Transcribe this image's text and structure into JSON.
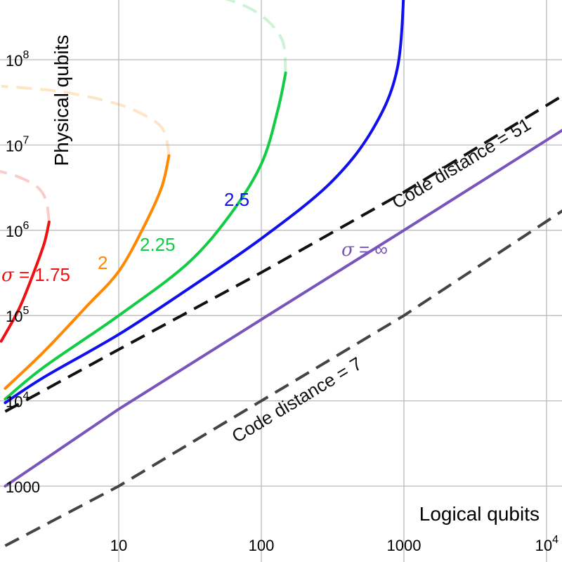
{
  "chart_data": {
    "type": "line",
    "x_scale": "log",
    "y_scale": "log",
    "xlim": [
      1.6,
      13000
    ],
    "ylim": [
      320,
      1000000000
    ],
    "grid": true,
    "xlabel": "Logical qubits",
    "ylabel": "Physical qubits",
    "x_ticks": [
      {
        "value": 10,
        "label": "10"
      },
      {
        "value": 100,
        "label": "100"
      },
      {
        "value": 1000,
        "label": "1000"
      },
      {
        "value": 10000,
        "base": "10",
        "exp": "4"
      }
    ],
    "y_ticks": [
      {
        "value": 1000,
        "label": "1000"
      },
      {
        "value": 10000,
        "base": "10",
        "exp": "4"
      },
      {
        "value": 100000,
        "base": "10",
        "exp": "5"
      },
      {
        "value": 1000000,
        "base": "10",
        "exp": "6"
      },
      {
        "value": 10000000,
        "base": "10",
        "exp": "7"
      },
      {
        "value": 100000000,
        "base": "10",
        "exp": "8"
      }
    ],
    "series": [
      {
        "name": "σ = 1.75",
        "color": "#ee1111",
        "solid": [
          [
            1.5,
            50000
          ],
          [
            2.0,
            120000
          ],
          [
            2.5,
            300000
          ],
          [
            3.0,
            700000
          ],
          [
            3.25,
            1250000
          ]
        ],
        "dashed": [
          [
            3.25,
            1250000
          ],
          [
            3.1,
            2200000
          ],
          [
            2.7,
            3200000
          ],
          [
            2.0,
            4200000
          ],
          [
            1.4,
            5000000
          ]
        ]
      },
      {
        "name": "2",
        "color": "#ff8800",
        "solid": [
          [
            1.6,
            14000
          ],
          [
            3.0,
            38000
          ],
          [
            6.0,
            130000
          ],
          [
            10.0,
            330000
          ],
          [
            15.0,
            1100000
          ],
          [
            20.0,
            3200000
          ],
          [
            22.5,
            7500000
          ]
        ],
        "dashed": [
          [
            22.5,
            7500000
          ],
          [
            21.0,
            14000000
          ],
          [
            17.0,
            20000000
          ],
          [
            10.0,
            30000000
          ],
          [
            4.0,
            42000000
          ],
          [
            1.5,
            49000000
          ]
        ]
      },
      {
        "name": "2.25",
        "color": "#11cc44",
        "solid": [
          [
            1.6,
            10500
          ],
          [
            3.0,
            25000
          ],
          [
            10.0,
            100000
          ],
          [
            30.0,
            400000
          ],
          [
            60.0,
            1500000
          ],
          [
            100.0,
            6000000
          ],
          [
            130.0,
            25000000
          ],
          [
            148.0,
            70000000
          ]
        ],
        "dashed": [
          [
            148.0,
            70000000
          ],
          [
            140.0,
            170000000
          ],
          [
            100.0,
            330000000
          ],
          [
            60.0,
            500000000
          ],
          [
            30.0,
            650000000
          ],
          [
            10.0,
            820000000
          ],
          [
            3.0,
            970000000
          ]
        ]
      },
      {
        "name": "2.5",
        "color": "#1010ee",
        "solid": [
          [
            1.6,
            9500
          ],
          [
            3.0,
            19000
          ],
          [
            10.0,
            60000
          ],
          [
            30.0,
            200000
          ],
          [
            100.0,
            800000
          ],
          [
            300.0,
            3500000
          ],
          [
            600.0,
            15000000
          ],
          [
            900.0,
            80000000
          ],
          [
            1010.0,
            1000000000
          ]
        ]
      },
      {
        "name": "σ = ∞",
        "color": "#7755bb",
        "solid": [
          [
            1.6,
            1000
          ],
          [
            10.0,
            8000
          ],
          [
            100.0,
            90000
          ],
          [
            1000.0,
            1000000
          ],
          [
            13000.0,
            15000000
          ]
        ]
      },
      {
        "name": "Code distance = 51",
        "color": "#111111",
        "dashed": [
          [
            1.6,
            7500
          ],
          [
            10.0,
            40000
          ],
          [
            100.0,
            320000
          ],
          [
            1000.0,
            2800000
          ],
          [
            13000.0,
            38000000
          ]
        ]
      },
      {
        "name": "Code distance = 7",
        "color": "#444444",
        "dashed": [
          [
            1.6,
            200
          ],
          [
            10.0,
            1000
          ],
          [
            100.0,
            10000
          ],
          [
            1000.0,
            100000
          ],
          [
            13000.0,
            1700000
          ]
        ]
      }
    ]
  },
  "annotations": [
    {
      "id": "s175",
      "sigma": "σ",
      "text": " = 1.75",
      "color": "#ee1111"
    },
    {
      "id": "s2",
      "text": "2",
      "color": "#ff8800"
    },
    {
      "id": "s225",
      "text": "2.25",
      "color": "#11cc44"
    },
    {
      "id": "s25",
      "text": "2.5",
      "color": "#1010ee"
    },
    {
      "id": "sinf",
      "sigma": "σ",
      "text": " = ∞",
      "color": "#7755bb"
    },
    {
      "id": "cd51",
      "text": "Code distance = 51",
      "color": "#111111"
    },
    {
      "id": "cd7",
      "text": "Code distance = 7",
      "color": "#111111"
    }
  ]
}
